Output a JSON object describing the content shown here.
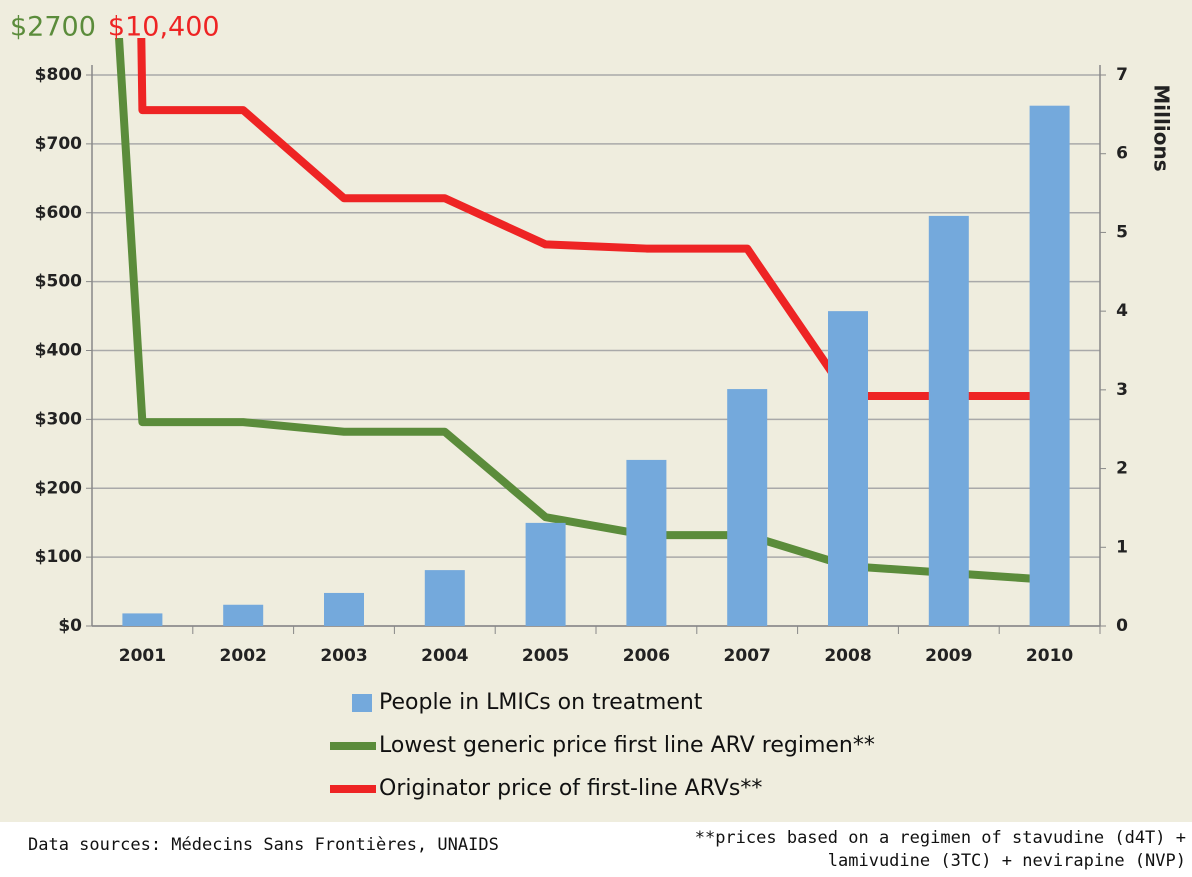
{
  "chart_data": {
    "type": "bar_line",
    "categories": [
      null,
      "2001",
      "2002",
      "2003",
      "2004",
      "2005",
      "2006",
      "2007",
      "2008",
      "2009",
      "2010"
    ],
    "series": [
      {
        "name": "People in LMICs on treatment",
        "type": "bar",
        "axis": "y2",
        "color": "#74a9dc",
        "values": [
          null,
          0.16,
          0.27,
          0.42,
          0.71,
          1.31,
          2.11,
          3.01,
          4.0,
          5.21,
          6.61
        ]
      },
      {
        "name": "Lowest generic price first line ARV regimen**",
        "type": "line",
        "color": "#5b8c3b",
        "values": [
          2700,
          296,
          296,
          282,
          282,
          158,
          132,
          132,
          87,
          77,
          67
        ],
        "value_labels": [
          "$2700",
          null,
          null,
          null,
          null,
          null,
          null,
          null,
          null,
          null,
          null
        ]
      },
      {
        "name": "Originator price of first-line ARVs**",
        "type": "line",
        "color": "#ee2424",
        "values": [
          10400,
          749,
          749,
          621,
          621,
          554,
          548,
          548,
          334,
          334,
          334
        ],
        "value_labels": [
          "$10,400",
          null,
          null,
          null,
          null,
          null,
          null,
          null,
          null,
          null,
          null
        ]
      }
    ],
    "ylim": [
      0,
      800
    ],
    "yticks": [
      {
        "value": 0,
        "label": "$0"
      },
      {
        "value": 100,
        "label": "$100"
      },
      {
        "value": 200,
        "label": "$200"
      },
      {
        "value": 300,
        "label": "$300"
      },
      {
        "value": 400,
        "label": "$400"
      },
      {
        "value": 500,
        "label": "$500"
      },
      {
        "value": 600,
        "label": "$600"
      },
      {
        "value": 700,
        "label": "$700"
      },
      {
        "value": 800,
        "label": "$800"
      }
    ],
    "y2label": "Millions",
    "y2lim": [
      0,
      7
    ],
    "y2ticks": [
      0,
      1,
      2,
      3,
      4,
      5,
      6,
      7
    ],
    "grid": true,
    "legend": "bottom",
    "footnote_left": "Data sources: Médecins Sans Frontières, UNAIDS",
    "footnote_right": [
      "**prices based on a regimen of stavudine (d4T) +",
      "lamivudine (3TC) + nevirapine (NVP)"
    ]
  }
}
